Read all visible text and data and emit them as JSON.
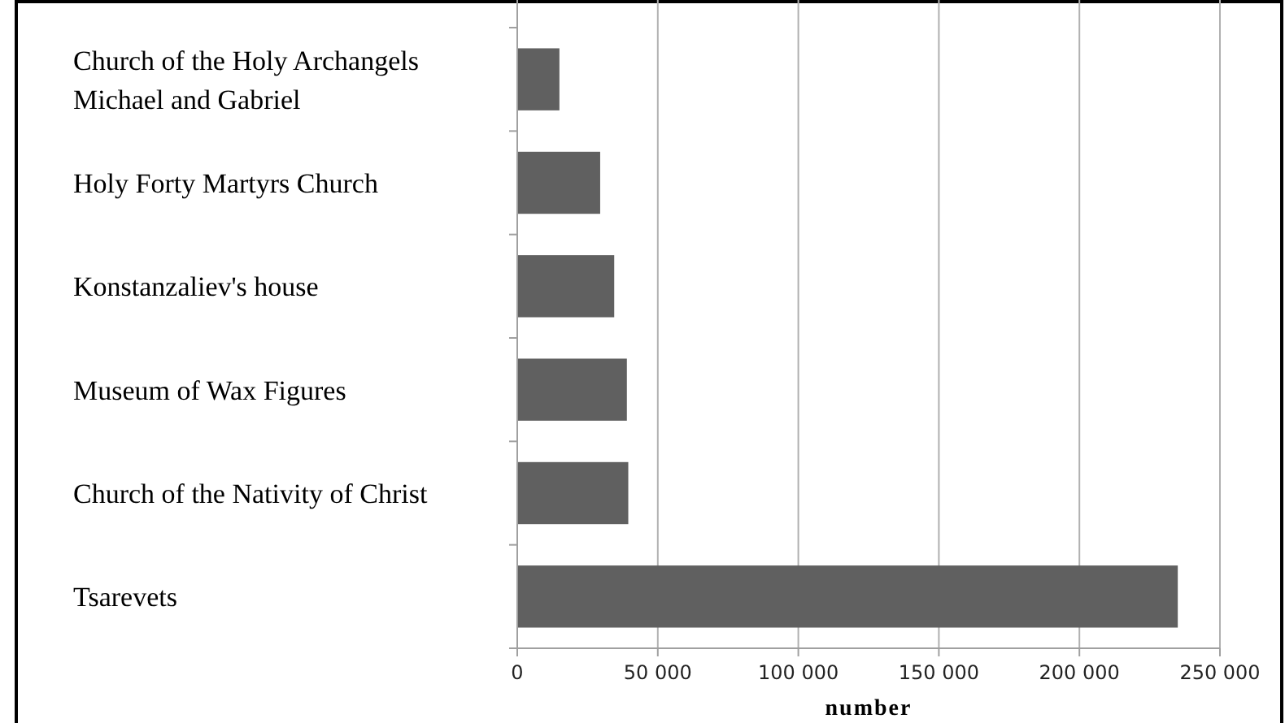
{
  "chart_data": {
    "type": "bar",
    "orientation": "horizontal",
    "xlabel": "number",
    "categories": [
      "Church of the Holy Archangels Michael and Gabriel",
      "Holy Forty Martyrs Church",
      "Konstanzaliev's house",
      "Museum of Wax Figures",
      "Church of the Nativity of Christ",
      "Tsarevets"
    ],
    "values": [
      15000,
      29500,
      34500,
      39000,
      39500,
      235000
    ],
    "color": "#606060",
    "xlim": [
      0,
      250000
    ],
    "xticks": [
      {
        "value": 0,
        "label": "0"
      },
      {
        "value": 50000,
        "label": "50 000"
      },
      {
        "value": 100000,
        "label": "100 000"
      },
      {
        "value": 150000,
        "label": "150 000"
      },
      {
        "value": 200000,
        "label": "200 000"
      },
      {
        "value": 250000,
        "label": "250 000"
      }
    ],
    "grid": "x"
  }
}
